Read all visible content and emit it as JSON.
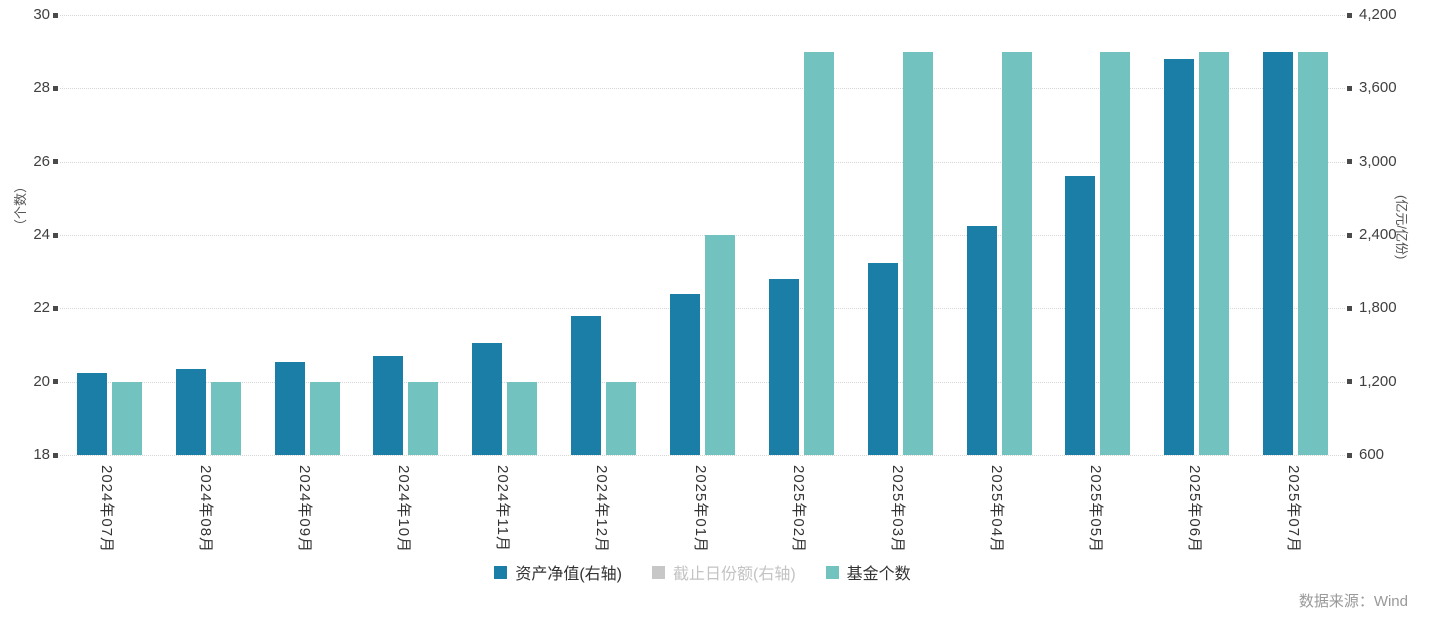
{
  "chart_data": {
    "type": "bar",
    "categories": [
      "2024年07月",
      "2024年08月",
      "2024年09月",
      "2024年10月",
      "2024年11月",
      "2024年12月",
      "2025年01月",
      "2025年02月",
      "2025年03月",
      "2025年04月",
      "2025年05月",
      "2025年06月",
      "2025年07月"
    ],
    "series": [
      {
        "name": "资产净值(右轴)",
        "axis": "right",
        "color": "#1b7ea7",
        "disabled": false,
        "values": [
          1275,
          1300,
          1365,
          1410,
          1515,
          1740,
          1920,
          2040,
          2175,
          2470,
          2880,
          3840,
          3900
        ]
      },
      {
        "name": "截止日份额(右轴)",
        "axis": "right",
        "color": "#c7c7c7",
        "disabled": true,
        "values": []
      },
      {
        "name": "基金个数",
        "axis": "left",
        "color": "#72c2c0",
        "disabled": false,
        "values": [
          20,
          20,
          20,
          20,
          20,
          20,
          24,
          29,
          29,
          29,
          29,
          29,
          29
        ]
      }
    ],
    "left_axis": {
      "title": "（个数）",
      "min": 18,
      "max": 30,
      "ticks": [
        18,
        20,
        22,
        24,
        26,
        28,
        30
      ]
    },
    "right_axis": {
      "title": "(亿元/亿份)",
      "min": 600,
      "max": 4200,
      "ticks": [
        600,
        1200,
        1800,
        2400,
        3000,
        3600,
        4200
      ]
    },
    "legend_position": "bottom",
    "grid": "dotted-horizontal",
    "source": "数据来源：Wind"
  }
}
